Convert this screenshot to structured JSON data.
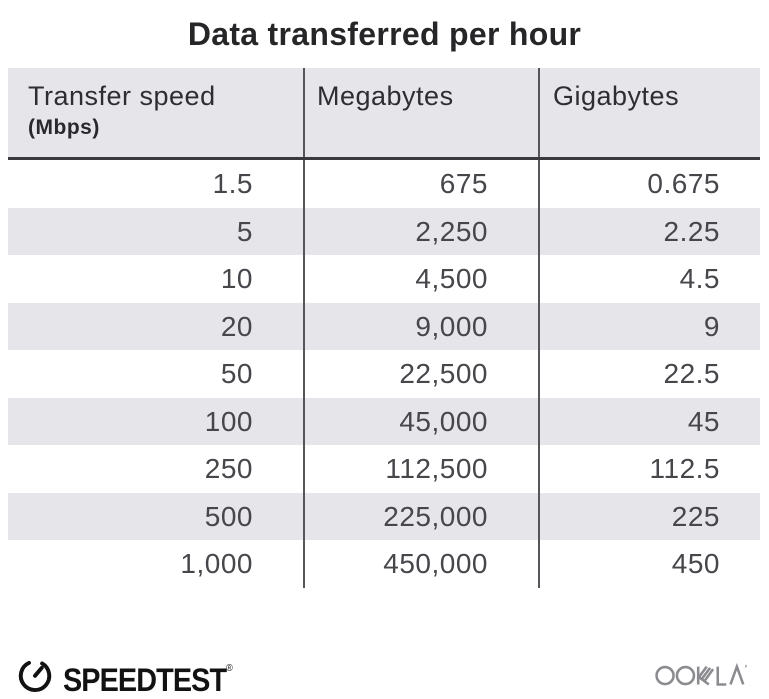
{
  "title": "Data transferred per hour",
  "table": {
    "columns": [
      {
        "label": "Transfer speed",
        "sublabel": "(Mbps)"
      },
      {
        "label": "Megabytes",
        "sublabel": ""
      },
      {
        "label": "Gigabytes",
        "sublabel": ""
      }
    ],
    "rows": [
      [
        "1.5",
        "675",
        "0.675"
      ],
      [
        "5",
        "2,250",
        "2.25"
      ],
      [
        "10",
        "4,500",
        "4.5"
      ],
      [
        "20",
        "9,000",
        "9"
      ],
      [
        "50",
        "22,500",
        "22.5"
      ],
      [
        "100",
        "45,000",
        "45"
      ],
      [
        "250",
        "112,500",
        "112.5"
      ],
      [
        "500",
        "225,000",
        "225"
      ],
      [
        "1,000",
        "450,000",
        "450"
      ]
    ]
  },
  "footer": {
    "speedtest_label": "SPEEDTEST",
    "speedtest_trademark": "®",
    "ookla_label": "OOKLA"
  },
  "colors": {
    "stripe": "#e6e6ea",
    "header_bg": "#e6e6ea",
    "divider": "#55555a",
    "header_border": "#3a3a3d",
    "title_text": "#262629",
    "cell_text": "#46464b",
    "speedtest_black": "#121212",
    "ookla_gray": "#8b8b90"
  },
  "chart_data": {
    "type": "table",
    "title": "Data transferred per hour",
    "columns": [
      "Transfer speed (Mbps)",
      "Megabytes",
      "Gigabytes"
    ],
    "rows": [
      [
        1.5,
        675,
        0.675
      ],
      [
        5,
        2250,
        2.25
      ],
      [
        10,
        4500,
        4.5
      ],
      [
        20,
        9000,
        9
      ],
      [
        50,
        22500,
        22.5
      ],
      [
        100,
        45000,
        45
      ],
      [
        250,
        112500,
        112.5
      ],
      [
        500,
        225000,
        225
      ],
      [
        1000,
        450000,
        450
      ]
    ],
    "layout": {
      "striped_rows": true,
      "column_dividers": true,
      "value_alignment": "right"
    }
  }
}
